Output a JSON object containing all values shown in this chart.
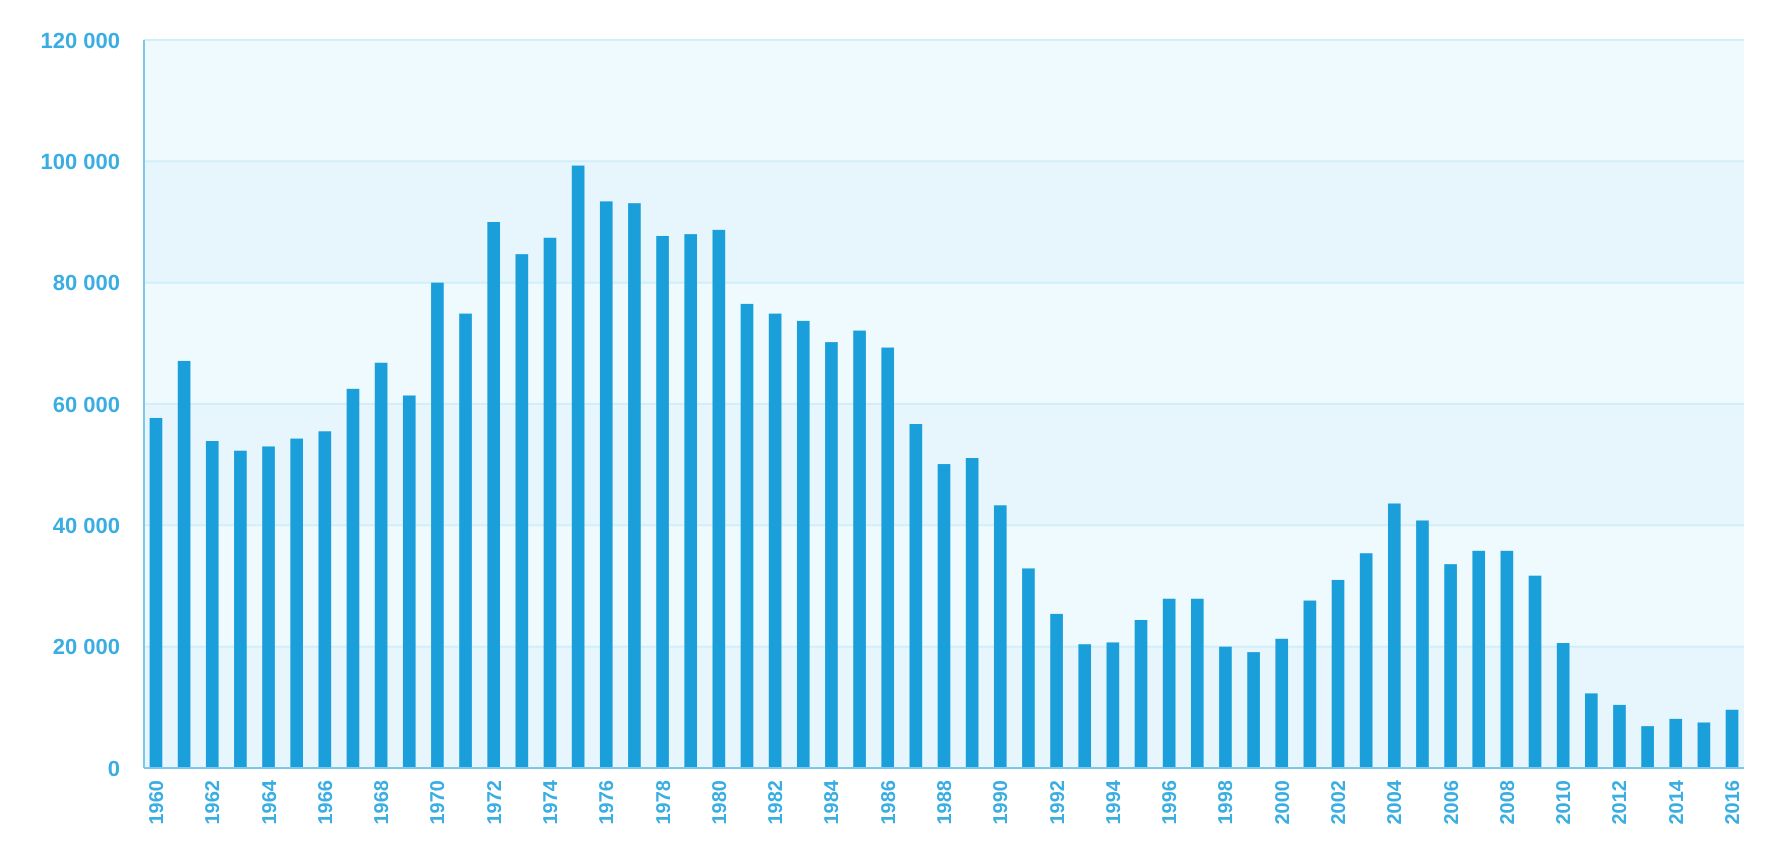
{
  "chart_data": {
    "type": "bar",
    "categories": [
      "1960",
      null,
      "1962",
      null,
      "1964",
      null,
      "1966",
      null,
      "1968",
      null,
      "1970",
      null,
      "1972",
      null,
      "1974",
      null,
      "1976",
      null,
      "1978",
      null,
      "1980",
      null,
      "1982",
      null,
      "1984",
      null,
      "1986",
      null,
      "1988",
      null,
      "1990",
      null,
      "1992",
      null,
      "1994",
      null,
      "1996",
      null,
      "1998",
      null,
      "2000",
      null,
      "2002",
      null,
      "2004",
      null,
      "2006",
      null,
      "2008",
      null,
      "2010",
      null,
      "2012",
      null,
      "2014",
      null,
      "2016"
    ],
    "values": [
      57700,
      67100,
      53900,
      52300,
      53000,
      54300,
      55500,
      62500,
      66800,
      61400,
      80000,
      74900,
      90000,
      84700,
      87400,
      99300,
      93400,
      93100,
      87700,
      88000,
      88700,
      76500,
      74900,
      73700,
      70200,
      72100,
      69300,
      56700,
      50100,
      51100,
      43300,
      32900,
      25400,
      20400,
      20700,
      24400,
      27900,
      27900,
      20000,
      19100,
      21300,
      27600,
      31000,
      35400,
      43600,
      40800,
      33600,
      35800,
      35800,
      31700,
      20600,
      12300,
      10400,
      6900,
      8100,
      7500,
      9600
    ],
    "color": "#1a9fdb",
    "ylim": [
      0,
      120000
    ],
    "yticks": [
      {
        "value": 0,
        "label": "0"
      },
      {
        "value": 20000,
        "label": "20 000"
      },
      {
        "value": 40000,
        "label": "40 000"
      },
      {
        "value": 60000,
        "label": "60 000"
      },
      {
        "value": 80000,
        "label": "80 000"
      },
      {
        "value": 100000,
        "label": "100 000"
      },
      {
        "value": 120000,
        "label": "120 000"
      }
    ],
    "grid": "y"
  }
}
